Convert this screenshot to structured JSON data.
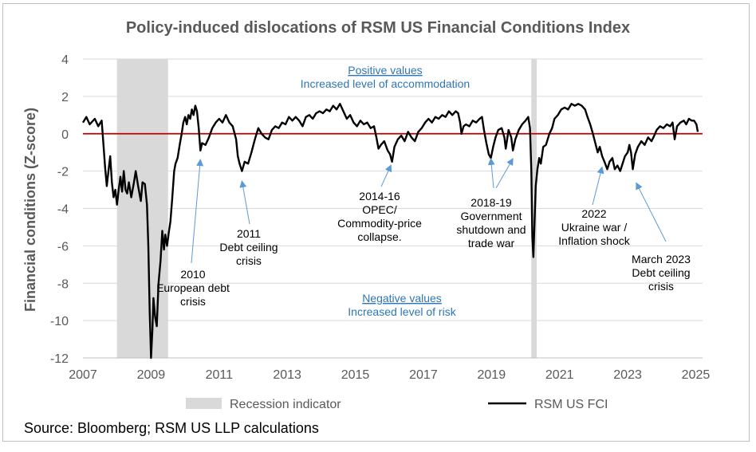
{
  "chart_data": {
    "type": "line",
    "title": "Policy-induced dislocations of RSM US Financial Conditions Index",
    "ylabel": "Financial conditions (Z-score)",
    "xlabel": "",
    "xlim": [
      2007,
      2025.2
    ],
    "ylim": [
      -12,
      4
    ],
    "yticks": [
      4,
      2,
      0,
      -2,
      -4,
      -6,
      -8,
      -10,
      -12
    ],
    "xticks": [
      2007,
      2009,
      2011,
      2013,
      2015,
      2017,
      2019,
      2021,
      2023,
      2025
    ],
    "recessions": [
      [
        2008.0,
        2009.5
      ],
      [
        2020.17,
        2020.33
      ]
    ],
    "series": [
      {
        "name": "RSM US FCI",
        "color": "#000000",
        "points": [
          [
            2007.0,
            0.6
          ],
          [
            2007.1,
            0.9
          ],
          [
            2007.2,
            0.5
          ],
          [
            2007.35,
            0.8
          ],
          [
            2007.45,
            0.4
          ],
          [
            2007.55,
            0.7
          ],
          [
            2007.6,
            -0.5
          ],
          [
            2007.65,
            -1.8
          ],
          [
            2007.7,
            -2.8
          ],
          [
            2007.75,
            -2.0
          ],
          [
            2007.8,
            -1.2
          ],
          [
            2007.85,
            -2.6
          ],
          [
            2007.9,
            -3.4
          ],
          [
            2007.95,
            -3.0
          ],
          [
            2008.0,
            -3.8
          ],
          [
            2008.05,
            -3.0
          ],
          [
            2008.1,
            -2.3
          ],
          [
            2008.15,
            -3.1
          ],
          [
            2008.2,
            -2.0
          ],
          [
            2008.25,
            -3.0
          ],
          [
            2008.3,
            -3.2
          ],
          [
            2008.35,
            -2.6
          ],
          [
            2008.42,
            -3.4
          ],
          [
            2008.5,
            -2.6
          ],
          [
            2008.55,
            -2.0
          ],
          [
            2008.62,
            -2.8
          ],
          [
            2008.7,
            -3.6
          ],
          [
            2008.75,
            -2.6
          ],
          [
            2008.82,
            -2.7
          ],
          [
            2008.88,
            -3.8
          ],
          [
            2008.92,
            -6.0
          ],
          [
            2008.96,
            -9.5
          ],
          [
            2009.0,
            -12.0
          ],
          [
            2009.04,
            -10.5
          ],
          [
            2009.07,
            -8.8
          ],
          [
            2009.12,
            -9.8
          ],
          [
            2009.17,
            -10.3
          ],
          [
            2009.22,
            -8.0
          ],
          [
            2009.28,
            -6.8
          ],
          [
            2009.33,
            -5.2
          ],
          [
            2009.38,
            -6.2
          ],
          [
            2009.42,
            -5.4
          ],
          [
            2009.47,
            -6.0
          ],
          [
            2009.52,
            -5.3
          ],
          [
            2009.57,
            -4.7
          ],
          [
            2009.62,
            -3.5
          ],
          [
            2009.68,
            -2.0
          ],
          [
            2009.72,
            -1.6
          ],
          [
            2009.78,
            -1.3
          ],
          [
            2009.85,
            -0.5
          ],
          [
            2009.9,
            0.0
          ],
          [
            2009.95,
            0.6
          ],
          [
            2010.0,
            0.9
          ],
          [
            2010.05,
            0.5
          ],
          [
            2010.1,
            1.0
          ],
          [
            2010.15,
            0.8
          ],
          [
            2010.2,
            1.3
          ],
          [
            2010.25,
            1.0
          ],
          [
            2010.3,
            1.5
          ],
          [
            2010.35,
            1.2
          ],
          [
            2010.4,
            0.3
          ],
          [
            2010.45,
            -0.9
          ],
          [
            2010.5,
            -0.5
          ],
          [
            2010.6,
            -0.6
          ],
          [
            2010.7,
            -0.2
          ],
          [
            2010.8,
            0.3
          ],
          [
            2010.9,
            0.6
          ],
          [
            2011.0,
            0.8
          ],
          [
            2011.1,
            0.6
          ],
          [
            2011.2,
            1.0
          ],
          [
            2011.3,
            0.6
          ],
          [
            2011.4,
            0.4
          ],
          [
            2011.5,
            -0.3
          ],
          [
            2011.55,
            -1.2
          ],
          [
            2011.6,
            -1.6
          ],
          [
            2011.67,
            -2.0
          ],
          [
            2011.75,
            -1.5
          ],
          [
            2011.85,
            -1.6
          ],
          [
            2011.95,
            -1.0
          ],
          [
            2012.05,
            -0.3
          ],
          [
            2012.15,
            0.3
          ],
          [
            2012.25,
            0.0
          ],
          [
            2012.35,
            -0.2
          ],
          [
            2012.45,
            -0.3
          ],
          [
            2012.55,
            0.2
          ],
          [
            2012.65,
            0.4
          ],
          [
            2012.75,
            0.3
          ],
          [
            2012.85,
            0.6
          ],
          [
            2012.95,
            0.5
          ],
          [
            2013.05,
            0.9
          ],
          [
            2013.15,
            0.7
          ],
          [
            2013.25,
            0.9
          ],
          [
            2013.35,
            0.7
          ],
          [
            2013.45,
            0.4
          ],
          [
            2013.55,
            0.9
          ],
          [
            2013.65,
            1.0
          ],
          [
            2013.75,
            0.8
          ],
          [
            2013.85,
            1.1
          ],
          [
            2013.95,
            1.2
          ],
          [
            2014.05,
            1.1
          ],
          [
            2014.15,
            1.3
          ],
          [
            2014.25,
            1.2
          ],
          [
            2014.35,
            1.5
          ],
          [
            2014.45,
            1.3
          ],
          [
            2014.55,
            1.6
          ],
          [
            2014.65,
            1.2
          ],
          [
            2014.75,
            0.8
          ],
          [
            2014.85,
            1.0
          ],
          [
            2014.95,
            0.6
          ],
          [
            2015.05,
            0.4
          ],
          [
            2015.15,
            0.7
          ],
          [
            2015.25,
            0.5
          ],
          [
            2015.35,
            0.6
          ],
          [
            2015.45,
            0.3
          ],
          [
            2015.55,
            0.4
          ],
          [
            2015.62,
            -0.2
          ],
          [
            2015.68,
            -0.8
          ],
          [
            2015.75,
            -0.6
          ],
          [
            2015.85,
            -0.4
          ],
          [
            2015.95,
            -0.9
          ],
          [
            2016.02,
            -1.1
          ],
          [
            2016.08,
            -1.5
          ],
          [
            2016.15,
            -0.7
          ],
          [
            2016.25,
            -0.3
          ],
          [
            2016.35,
            -0.1
          ],
          [
            2016.45,
            -0.4
          ],
          [
            2016.55,
            0.1
          ],
          [
            2016.65,
            -0.2
          ],
          [
            2016.75,
            -0.4
          ],
          [
            2016.85,
            0.1
          ],
          [
            2016.95,
            0.3
          ],
          [
            2017.05,
            0.6
          ],
          [
            2017.15,
            0.8
          ],
          [
            2017.25,
            0.6
          ],
          [
            2017.35,
            0.9
          ],
          [
            2017.45,
            0.8
          ],
          [
            2017.55,
            1.0
          ],
          [
            2017.65,
            0.9
          ],
          [
            2017.75,
            1.2
          ],
          [
            2017.85,
            1.0
          ],
          [
            2017.95,
            1.2
          ],
          [
            2018.02,
            1.1
          ],
          [
            2018.08,
            0.6
          ],
          [
            2018.12,
            0.0
          ],
          [
            2018.18,
            0.4
          ],
          [
            2018.25,
            0.5
          ],
          [
            2018.35,
            0.4
          ],
          [
            2018.45,
            0.7
          ],
          [
            2018.55,
            0.6
          ],
          [
            2018.65,
            0.8
          ],
          [
            2018.72,
            0.9
          ],
          [
            2018.78,
            0.2
          ],
          [
            2018.85,
            -0.5
          ],
          [
            2018.92,
            -1.1
          ],
          [
            2018.98,
            -1.3
          ],
          [
            2019.05,
            -0.7
          ],
          [
            2019.12,
            -0.2
          ],
          [
            2019.2,
            0.2
          ],
          [
            2019.3,
            0.3
          ],
          [
            2019.38,
            -0.2
          ],
          [
            2019.42,
            -0.8
          ],
          [
            2019.5,
            0.2
          ],
          [
            2019.58,
            -0.2
          ],
          [
            2019.63,
            -0.9
          ],
          [
            2019.7,
            -0.3
          ],
          [
            2019.8,
            0.2
          ],
          [
            2019.9,
            0.5
          ],
          [
            2020.0,
            0.7
          ],
          [
            2020.08,
            0.9
          ],
          [
            2020.13,
            0.3
          ],
          [
            2020.17,
            -2.0
          ],
          [
            2020.2,
            -5.5
          ],
          [
            2020.23,
            -6.6
          ],
          [
            2020.26,
            -5.0
          ],
          [
            2020.3,
            -2.8
          ],
          [
            2020.35,
            -1.9
          ],
          [
            2020.4,
            -1.3
          ],
          [
            2020.45,
            -1.6
          ],
          [
            2020.52,
            -0.7
          ],
          [
            2020.6,
            -0.6
          ],
          [
            2020.7,
            0.0
          ],
          [
            2020.78,
            0.3
          ],
          [
            2020.85,
            0.8
          ],
          [
            2020.95,
            1.0
          ],
          [
            2021.05,
            1.3
          ],
          [
            2021.15,
            1.4
          ],
          [
            2021.25,
            1.3
          ],
          [
            2021.35,
            1.6
          ],
          [
            2021.45,
            1.5
          ],
          [
            2021.55,
            1.6
          ],
          [
            2021.65,
            1.5
          ],
          [
            2021.75,
            1.3
          ],
          [
            2021.82,
            0.9
          ],
          [
            2021.9,
            0.5
          ],
          [
            2021.98,
            0.0
          ],
          [
            2022.05,
            -0.5
          ],
          [
            2022.12,
            -1.0
          ],
          [
            2022.18,
            -0.7
          ],
          [
            2022.25,
            -1.2
          ],
          [
            2022.32,
            -1.5
          ],
          [
            2022.4,
            -1.9
          ],
          [
            2022.47,
            -1.5
          ],
          [
            2022.55,
            -1.3
          ],
          [
            2022.62,
            -1.9
          ],
          [
            2022.7,
            -1.7
          ],
          [
            2022.78,
            -2.0
          ],
          [
            2022.85,
            -1.6
          ],
          [
            2022.92,
            -1.2
          ],
          [
            2023.0,
            -1.0
          ],
          [
            2023.05,
            -0.6
          ],
          [
            2023.1,
            -1.0
          ],
          [
            2023.15,
            -1.9
          ],
          [
            2023.22,
            -1.1
          ],
          [
            2023.3,
            -0.7
          ],
          [
            2023.4,
            -0.4
          ],
          [
            2023.5,
            -0.6
          ],
          [
            2023.6,
            -0.2
          ],
          [
            2023.7,
            -0.4
          ],
          [
            2023.78,
            -0.1
          ],
          [
            2023.85,
            0.2
          ],
          [
            2023.95,
            0.4
          ],
          [
            2024.05,
            0.3
          ],
          [
            2024.15,
            0.5
          ],
          [
            2024.25,
            0.4
          ],
          [
            2024.32,
            0.6
          ],
          [
            2024.38,
            -0.3
          ],
          [
            2024.45,
            0.4
          ],
          [
            2024.55,
            0.6
          ],
          [
            2024.65,
            0.7
          ],
          [
            2024.72,
            0.5
          ],
          [
            2024.8,
            0.8
          ],
          [
            2024.88,
            0.7
          ],
          [
            2024.95,
            0.7
          ],
          [
            2025.02,
            0.5
          ],
          [
            2025.06,
            0.1
          ]
        ]
      }
    ],
    "zero_line_color": "#c00000",
    "recession_color": "#d9d9d9",
    "top_note": {
      "line1": "Positive values",
      "line2": "Increased level of accommodation",
      "color": "#2e75b6"
    },
    "bottom_note": {
      "line1": "Negative values",
      "line2": "Increased level of risk",
      "color": "#2e75b6"
    },
    "annotations": [
      {
        "lines": [
          "2010",
          "European debt",
          "crisis"
        ],
        "target": [
          2010.45,
          -0.95
        ]
      },
      {
        "lines": [
          "2011",
          "Debt ceiling",
          "crisis"
        ],
        "target": [
          2011.67,
          -2.1
        ]
      },
      {
        "lines": [
          "2014-16",
          "OPEC/",
          "Commodity-price",
          "collapse."
        ],
        "target": [
          2016.05,
          -1.25
        ]
      },
      {
        "lines": [
          "2018-19",
          "Government",
          "shutdown and",
          "trade war"
        ],
        "target": [
          2018.98,
          -0.9
        ],
        "target2": [
          2019.63,
          -0.9
        ]
      },
      {
        "lines": [
          "2022",
          "Ukraine war /",
          "Inflation shock"
        ],
        "target": [
          2022.25,
          -1.35
        ]
      },
      {
        "lines": [
          "March 2023",
          "Debt ceiling",
          "crisis"
        ],
        "target": [
          2023.25,
          -2.2
        ]
      }
    ],
    "legend": {
      "recession_label": "Recession indicator",
      "series_label": "RSM US FCI"
    },
    "source": "Source: Bloomberg; RSM US LLP calculations"
  }
}
